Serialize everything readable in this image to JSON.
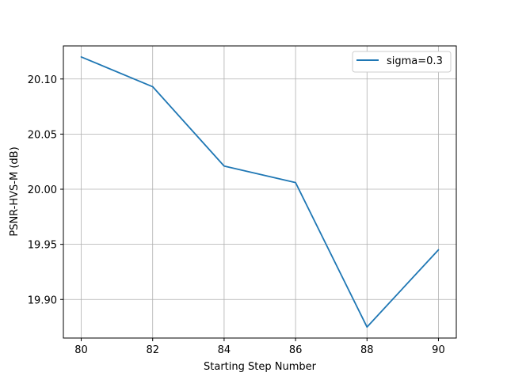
{
  "chart_data": {
    "type": "line",
    "title": "",
    "xlabel": "Starting Step Number",
    "ylabel": "PSNR-HVS-M (dB)",
    "xlim": [
      79.5,
      90.5
    ],
    "ylim": [
      19.865,
      20.13
    ],
    "grid": true,
    "legend_position": "top-right",
    "x": [
      80,
      82,
      84,
      86,
      88,
      90
    ],
    "x_ticks": [
      80,
      82,
      84,
      86,
      88,
      90
    ],
    "x_tick_labels": [
      "80",
      "82",
      "84",
      "86",
      "88",
      "90"
    ],
    "y_ticks": [
      19.9,
      19.95,
      20.0,
      20.05,
      20.1
    ],
    "y_tick_labels": [
      "19.90",
      "19.95",
      "20.00",
      "20.05",
      "20.10"
    ],
    "series": [
      {
        "name": "sigma=0.3",
        "color": "#1f77b4",
        "values": [
          20.12,
          20.093,
          20.021,
          20.006,
          19.875,
          19.945
        ]
      }
    ]
  }
}
